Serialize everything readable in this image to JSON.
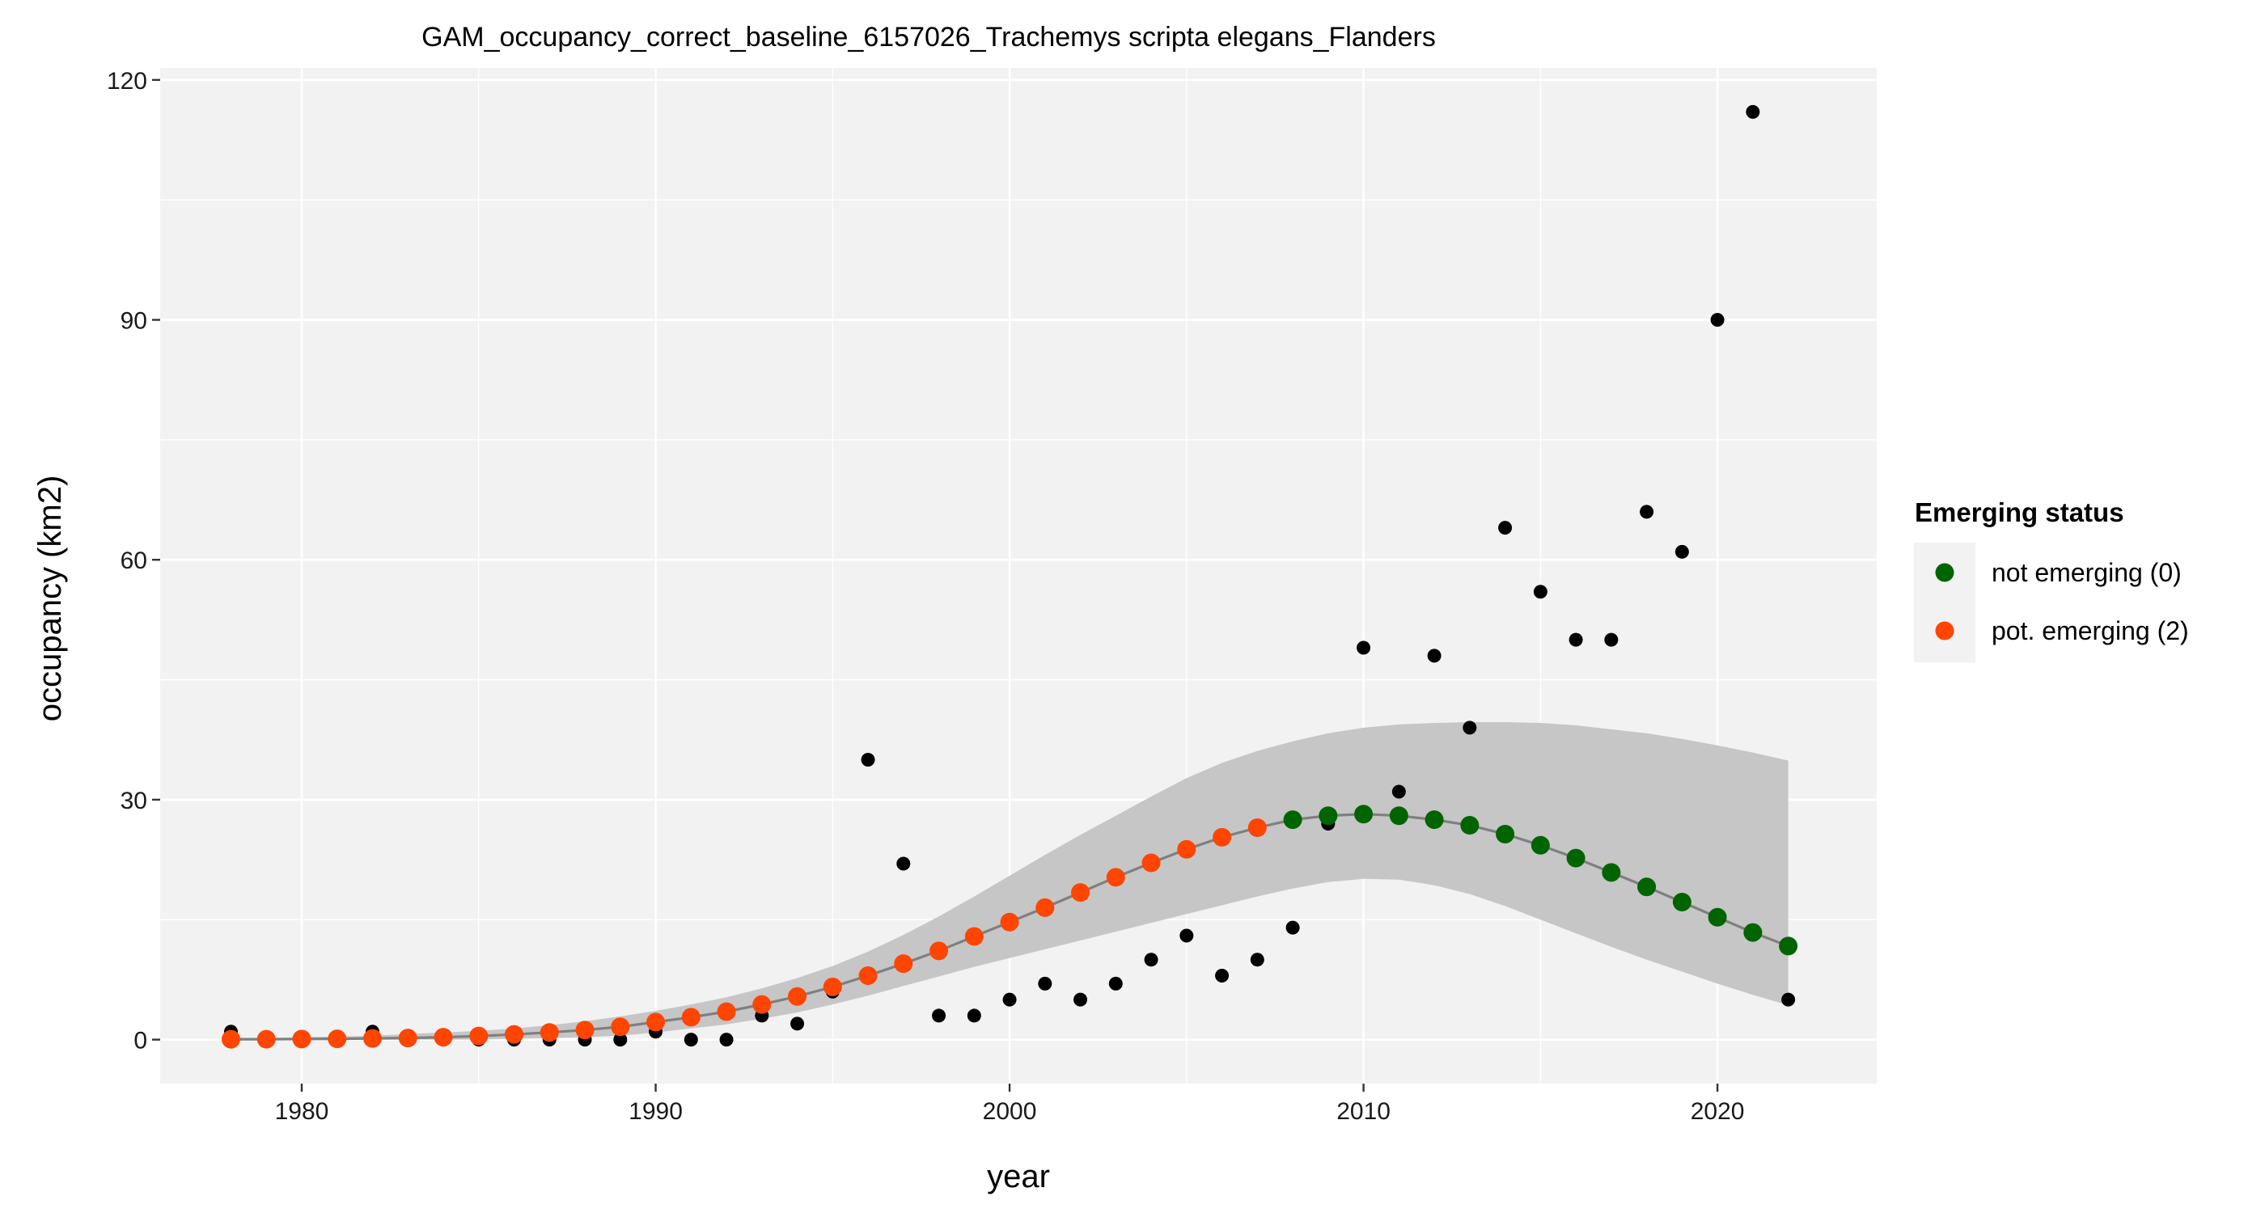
{
  "chart_data": {
    "type": "scatter",
    "title": "GAM_occupancy_correct_baseline_6157026_Trachemys scripta elegans_Flanders",
    "xlabel": "year",
    "ylabel": "occupancy (km2)",
    "xlim": [
      1976,
      2024.5
    ],
    "ylim": [
      -5.5,
      121.5
    ],
    "x_ticks": [
      1980,
      1990,
      2000,
      2010,
      2020
    ],
    "y_ticks": [
      0,
      30,
      60,
      90,
      120
    ],
    "grid": true,
    "legend": {
      "title": "Emerging status",
      "position": "right",
      "entries": [
        {
          "label": "not emerging (0)",
          "color": "#006400"
        },
        {
          "label": "pot. emerging (2)",
          "color": "#FF4500"
        }
      ]
    },
    "colors": {
      "panel_background": "#F2F2F2",
      "grid": "#FFFFFF",
      "ribbon": "#C6C6C6",
      "fit_line": "#7F7F7F",
      "observed": "#000000",
      "not_emerging": "#006400",
      "pot_emerging": "#FF4500"
    },
    "observed": {
      "name": "observed occupancy",
      "x": [
        1978,
        1979,
        1980,
        1981,
        1982,
        1983,
        1984,
        1985,
        1986,
        1987,
        1988,
        1989,
        1990,
        1991,
        1992,
        1993,
        1994,
        1995,
        1996,
        1997,
        1998,
        1999,
        2000,
        2001,
        2002,
        2003,
        2004,
        2005,
        2006,
        2007,
        2008,
        2009,
        2010,
        2011,
        2012,
        2013,
        2014,
        2015,
        2016,
        2017,
        2018,
        2019,
        2020,
        2021,
        2022
      ],
      "y": [
        1,
        0,
        0,
        0,
        1,
        0,
        0,
        0,
        0,
        0,
        0,
        0,
        1,
        0,
        0,
        3,
        2,
        6,
        35,
        22,
        3,
        3,
        5,
        7,
        5,
        7,
        10,
        13,
        8,
        10,
        14,
        27,
        49,
        31,
        48,
        39,
        64,
        56,
        50,
        50,
        66,
        61,
        90,
        116,
        5
      ]
    },
    "fit": {
      "name": "GAM fit",
      "x": [
        1978,
        1979,
        1980,
        1981,
        1982,
        1983,
        1984,
        1985,
        1986,
        1987,
        1988,
        1989,
        1990,
        1991,
        1992,
        1993,
        1994,
        1995,
        1996,
        1997,
        1998,
        1999,
        2000,
        2001,
        2002,
        2003,
        2004,
        2005,
        2006,
        2007,
        2008,
        2009,
        2010,
        2011,
        2012,
        2013,
        2014,
        2015,
        2016,
        2017,
        2018,
        2019,
        2020,
        2021,
        2022
      ],
      "y": [
        0.05,
        0.05,
        0.08,
        0.1,
        0.15,
        0.2,
        0.3,
        0.45,
        0.65,
        0.9,
        1.2,
        1.6,
        2.2,
        2.8,
        3.5,
        4.4,
        5.4,
        6.6,
        8.0,
        9.5,
        11.1,
        12.9,
        14.7,
        16.5,
        18.4,
        20.3,
        22.1,
        23.8,
        25.3,
        26.5,
        27.5,
        28.0,
        28.2,
        28.0,
        27.5,
        26.8,
        25.7,
        24.3,
        22.7,
        20.9,
        19.1,
        17.2,
        15.3,
        13.4,
        11.7
      ],
      "lower": [
        0,
        0,
        0,
        0,
        0,
        0,
        0,
        0,
        0.1,
        0.2,
        0.3,
        0.5,
        0.9,
        1.4,
        1.9,
        2.6,
        3.4,
        4.4,
        5.5,
        6.7,
        7.9,
        9.1,
        10.2,
        11.3,
        12.4,
        13.5,
        14.6,
        15.7,
        16.8,
        17.9,
        18.9,
        19.7,
        20.1,
        20.0,
        19.3,
        18.2,
        16.7,
        15.0,
        13.3,
        11.6,
        10.0,
        8.5,
        7.0,
        5.6,
        4.3
      ],
      "upper": [
        0.1,
        0.2,
        0.3,
        0.4,
        0.5,
        0.7,
        0.9,
        1.1,
        1.4,
        1.8,
        2.3,
        2.9,
        3.6,
        4.4,
        5.3,
        6.4,
        7.7,
        9.2,
        11.0,
        13.1,
        15.4,
        17.9,
        20.5,
        23.1,
        25.6,
        28.0,
        30.4,
        32.7,
        34.6,
        36.1,
        37.3,
        38.3,
        39.0,
        39.4,
        39.6,
        39.7,
        39.7,
        39.6,
        39.3,
        38.8,
        38.3,
        37.6,
        36.8,
        35.9,
        34.9
      ]
    },
    "emerging_points": {
      "x": [
        1978,
        1979,
        1980,
        1981,
        1982,
        1983,
        1984,
        1985,
        1986,
        1987,
        1988,
        1989,
        1990,
        1991,
        1992,
        1993,
        1994,
        1995,
        1996,
        1997,
        1998,
        1999,
        2000,
        2001,
        2002,
        2003,
        2004,
        2005,
        2006,
        2007,
        2008,
        2009,
        2010,
        2011,
        2012,
        2013,
        2014,
        2015,
        2016,
        2017,
        2018,
        2019,
        2020,
        2021,
        2022
      ],
      "status": [
        "pot. emerging (2)",
        "pot. emerging (2)",
        "pot. emerging (2)",
        "pot. emerging (2)",
        "pot. emerging (2)",
        "pot. emerging (2)",
        "pot. emerging (2)",
        "pot. emerging (2)",
        "pot. emerging (2)",
        "pot. emerging (2)",
        "pot. emerging (2)",
        "pot. emerging (2)",
        "pot. emerging (2)",
        "pot. emerging (2)",
        "pot. emerging (2)",
        "pot. emerging (2)",
        "pot. emerging (2)",
        "pot. emerging (2)",
        "pot. emerging (2)",
        "pot. emerging (2)",
        "pot. emerging (2)",
        "pot. emerging (2)",
        "pot. emerging (2)",
        "pot. emerging (2)",
        "pot. emerging (2)",
        "pot. emerging (2)",
        "pot. emerging (2)",
        "pot. emerging (2)",
        "pot. emerging (2)",
        "pot. emerging (2)",
        "not emerging (0)",
        "not emerging (0)",
        "not emerging (0)",
        "not emerging (0)",
        "not emerging (0)",
        "not emerging (0)",
        "not emerging (0)",
        "not emerging (0)",
        "not emerging (0)",
        "not emerging (0)",
        "not emerging (0)",
        "not emerging (0)",
        "not emerging (0)",
        "not emerging (0)",
        "not emerging (0)"
      ]
    }
  }
}
